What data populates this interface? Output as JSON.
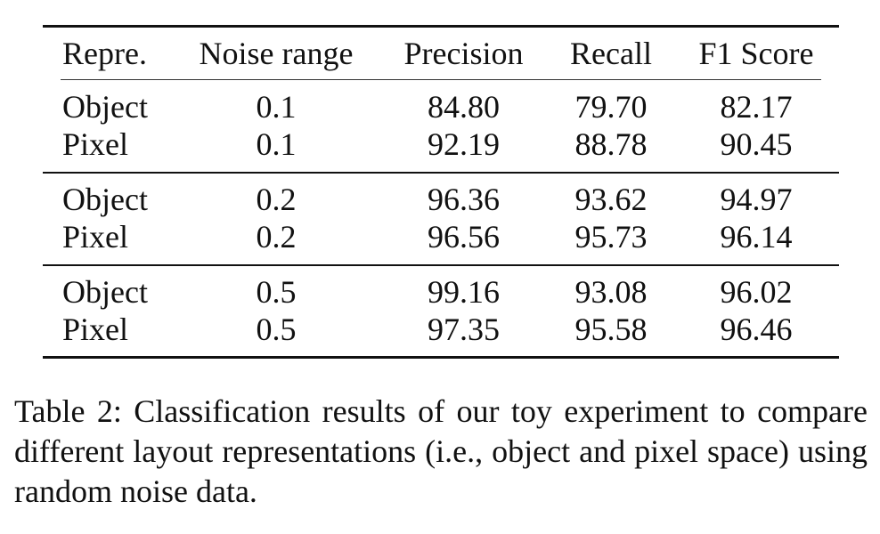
{
  "table": {
    "headers": [
      "Repre.",
      "Noise range",
      "Precision",
      "Recall",
      "F1 Score"
    ],
    "groups": [
      [
        [
          "Object",
          "0.1",
          "84.80",
          "79.70",
          "82.17"
        ],
        [
          "Pixel",
          "0.1",
          "92.19",
          "88.78",
          "90.45"
        ]
      ],
      [
        [
          "Object",
          "0.2",
          "96.36",
          "93.62",
          "94.97"
        ],
        [
          "Pixel",
          "0.2",
          "96.56",
          "95.73",
          "96.14"
        ]
      ],
      [
        [
          "Object",
          "0.5",
          "99.16",
          "93.08",
          "96.02"
        ],
        [
          "Pixel",
          "0.5",
          "97.35",
          "95.58",
          "96.46"
        ]
      ]
    ]
  },
  "caption": "Table 2: Classification results of our toy experiment to compare different layout representations (i.e., object and pixel space) using random noise data."
}
